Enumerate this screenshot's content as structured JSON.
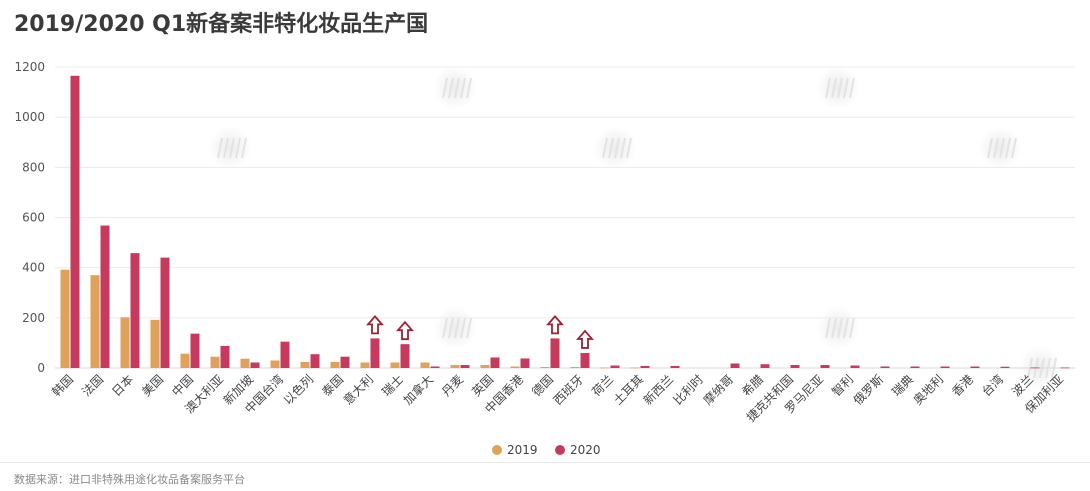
{
  "title": "2019/2020 Q1新备案非特化妆品生产国",
  "source": "数据来源：进口非特殊用途化妆品备案服务平台",
  "colors": {
    "series_2019": "#e0a15a",
    "series_2020": "#c73a5e",
    "arrow": "#9b2335",
    "grid": "#ececec"
  },
  "chart_data": {
    "type": "bar",
    "categories": [
      "韩国",
      "法国",
      "日本",
      "美国",
      "中国",
      "澳大利亚",
      "新加坡",
      "中国台湾",
      "以色列",
      "泰国",
      "意大利",
      "瑞士",
      "加拿大",
      "丹麦",
      "英国",
      "中国香港",
      "德国",
      "西班牙",
      "荷兰",
      "土耳其",
      "新西兰",
      "比利时",
      "摩纳哥",
      "希腊",
      "捷克共和国",
      "罗马尼亚",
      "智利",
      "俄罗斯",
      "瑞典",
      "奥地利",
      "香港",
      "台湾",
      "波兰",
      "保加利亚"
    ],
    "series": [
      {
        "name": "2019",
        "values": [
          392,
          370,
          202,
          192,
          57,
          45,
          37,
          30,
          24,
          24,
          22,
          22,
          22,
          12,
          12,
          6,
          4,
          4,
          2,
          2,
          0,
          0,
          0,
          0,
          0,
          0,
          0,
          0,
          0,
          0,
          0,
          0,
          0,
          0
        ]
      },
      {
        "name": "2020",
        "values": [
          1165,
          568,
          458,
          440,
          137,
          88,
          22,
          105,
          55,
          45,
          118,
          95,
          6,
          12,
          42,
          38,
          118,
          60,
          10,
          8,
          8,
          0,
          18,
          15,
          12,
          12,
          10,
          6,
          6,
          6,
          6,
          5,
          2,
          2
        ]
      }
    ],
    "highlighted_categories": [
      "意大利",
      "瑞士",
      "德国",
      "西班牙"
    ],
    "ylim": [
      0,
      1200
    ],
    "yticks": [
      0,
      200,
      400,
      600,
      800,
      1000,
      1200
    ],
    "xlabel": "",
    "ylabel": "",
    "legend_position": "bottom-center",
    "grid": true
  }
}
